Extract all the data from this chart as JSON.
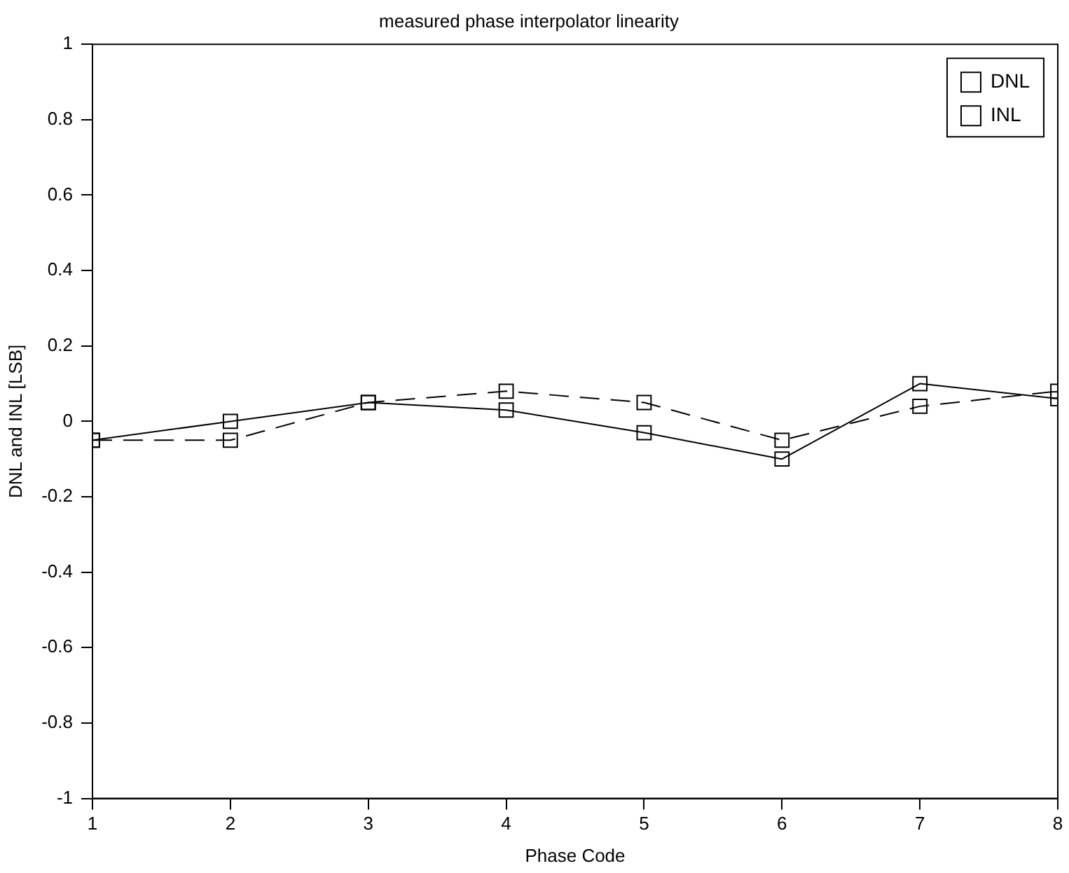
{
  "chart_data": {
    "type": "line",
    "title": "measured phase interpolator linearity",
    "xlabel": "Phase Code",
    "ylabel": "DNL and INL [LSB]",
    "x": [
      1,
      2,
      3,
      4,
      5,
      6,
      7,
      8
    ],
    "series": [
      {
        "name": "DNL",
        "color": "#000000",
        "line_style": "solid",
        "values": [
          -0.05,
          0,
          0.05,
          0.03,
          -0.03,
          -0.1,
          0.1,
          0.06
        ]
      },
      {
        "name": "INL",
        "color": "#000000",
        "line_style": "dashed",
        "values": [
          -0.05,
          -0.05,
          0.05,
          0.08,
          0.05,
          -0.05,
          0.04,
          0.08
        ]
      }
    ],
    "xlim": [
      1,
      8
    ],
    "xticks": [
      1,
      2,
      3,
      4,
      5,
      6,
      7,
      8
    ],
    "ylim": [
      -1,
      1
    ],
    "yticks": [
      -1,
      -0.8,
      -0.6,
      -0.4,
      -0.2,
      0,
      0.2,
      0.4,
      0.6,
      0.8,
      1
    ],
    "grid": false,
    "legend": "top right",
    "marker": "square"
  }
}
